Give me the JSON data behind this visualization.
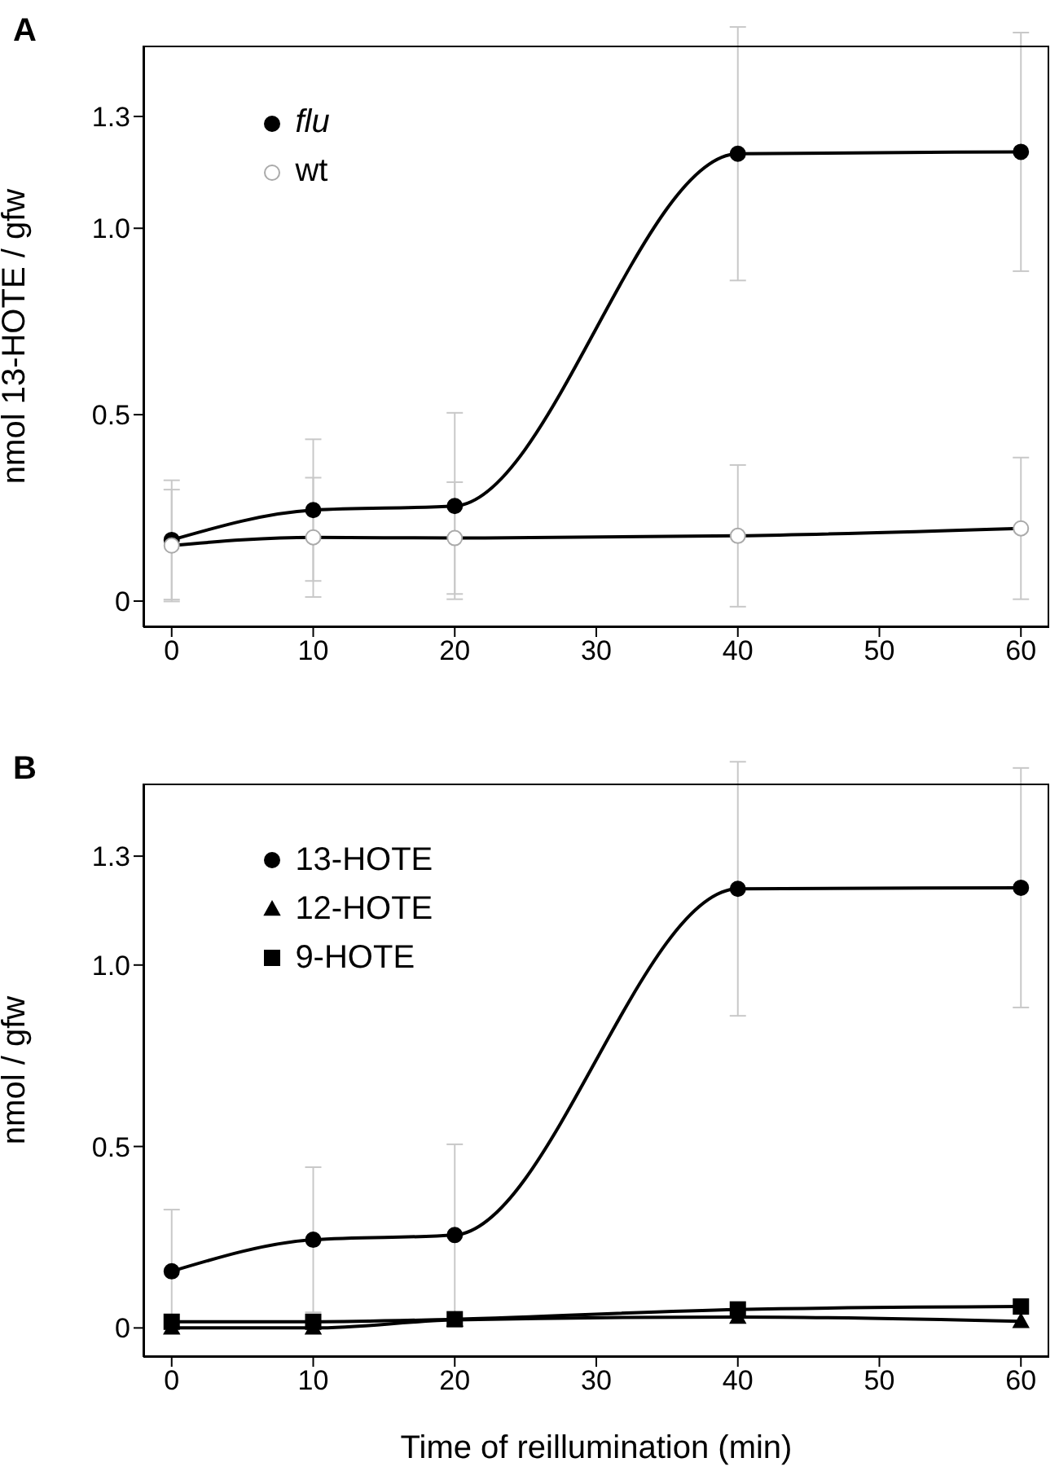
{
  "chart_data": [
    {
      "type": "line",
      "title": "A",
      "ylabel": "nmol 13-HOTE / gfw",
      "x": [
        0,
        10,
        20,
        40,
        60
      ],
      "xlim": [
        -2,
        62
      ],
      "xticks": [
        0,
        10,
        20,
        30,
        40,
        50,
        60
      ],
      "ylim": [
        -0.07,
        1.49
      ],
      "yticks": [
        0,
        0.5,
        {
          "value": 1,
          "label": "1.0"
        },
        1.3
      ],
      "legend": "top left",
      "marker": "circle",
      "line_style": "solid",
      "series": [
        {
          "name": "flu",
          "color": "#000000",
          "values": [
            0.164,
            0.244,
            0.255,
            1.2,
            1.205
          ],
          "errors": [
            0.16,
            0.19,
            0.25,
            0.34,
            0.32
          ]
        },
        {
          "name": "wt",
          "color": "#ffffff",
          "values": [
            0.149,
            0.171,
            0.169,
            0.175,
            0.195
          ],
          "errors": [
            0.15,
            0.16,
            0.15,
            0.19,
            0.19
          ]
        }
      ]
    },
    {
      "type": "line",
      "title": "B",
      "ylabel": "nmol / gfw",
      "xlabel": "Time of reillumination (min)",
      "x": [
        0,
        10,
        20,
        40,
        60
      ],
      "xlim": [
        -2,
        62
      ],
      "xticks": [
        0,
        10,
        20,
        30,
        40,
        50,
        60
      ],
      "ylim": [
        -0.08,
        1.5
      ],
      "yticks": [
        0,
        0.5,
        {
          "value": 1,
          "label": "1.0"
        },
        1.3
      ],
      "legend": "top left",
      "line_style": "solid",
      "series": [
        {
          "name": "13-HOTE",
          "color": "#000000",
          "marker": "circle",
          "values": [
            0.156,
            0.243,
            0.256,
            1.21,
            1.213
          ],
          "errors": [
            0.17,
            0.2,
            0.25,
            0.35,
            0.33
          ]
        },
        {
          "name": "12-HOTE",
          "color": "#000000",
          "marker": "triangle",
          "values": [
            0,
            0,
            0.022,
            0.03,
            0.018
          ]
        },
        {
          "name": "9-HOTE",
          "color": "#000000",
          "marker": "square",
          "values": [
            0.017,
            0.017,
            0.024,
            0.051,
            0.059
          ]
        }
      ]
    }
  ]
}
